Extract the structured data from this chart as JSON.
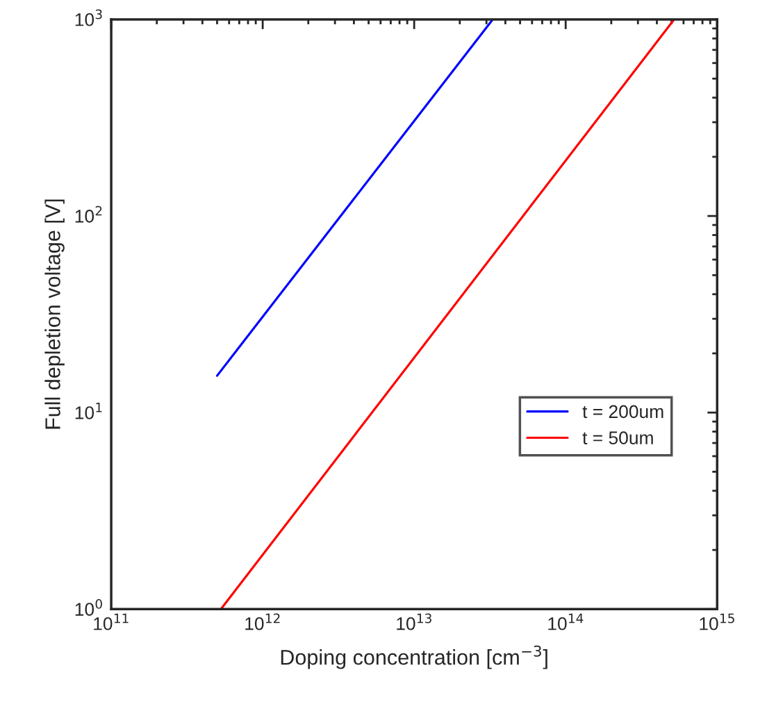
{
  "chart_data": {
    "type": "line",
    "xlabel": "Doping concentration [cm$^{−3}$]",
    "ylabel": "Full depletion voltage [V]",
    "log": "xy",
    "xlim": [
      100000000000.0,
      1000000000000000.0
    ],
    "ylim": [
      1,
      1000
    ],
    "xticks": [
      {
        "value": 100000000000.0,
        "label": "10$^{11}$"
      },
      {
        "value": 1000000000000.0,
        "label": "10$^{12}$"
      },
      {
        "value": 10000000000000.0,
        "label": "10$^{13}$"
      },
      {
        "value": 100000000000000.0,
        "label": "10$^{14}$"
      },
      {
        "value": 1000000000000000.0,
        "label": "10$^{15}$"
      }
    ],
    "yticks": [
      {
        "value": 1,
        "label": "10$^{0}$"
      },
      {
        "value": 10,
        "label": "10$^{1}$"
      },
      {
        "value": 100,
        "label": "10$^{2}$"
      },
      {
        "value": 1000,
        "label": "10$^{3}$"
      }
    ],
    "grid": false,
    "legend": "right",
    "line_style": "solid",
    "marker": "none",
    "series": [
      {
        "name": "t = 200um",
        "color": "#0000ff",
        "x": [
          500000000000.0,
          33000000000000.0
        ],
        "values": [
          15.4,
          1000
        ]
      },
      {
        "name": "t = 50um",
        "color": "#ff0000",
        "x": [
          530000000000.0,
          520000000000000.0
        ],
        "values": [
          1,
          1000
        ]
      }
    ]
  }
}
